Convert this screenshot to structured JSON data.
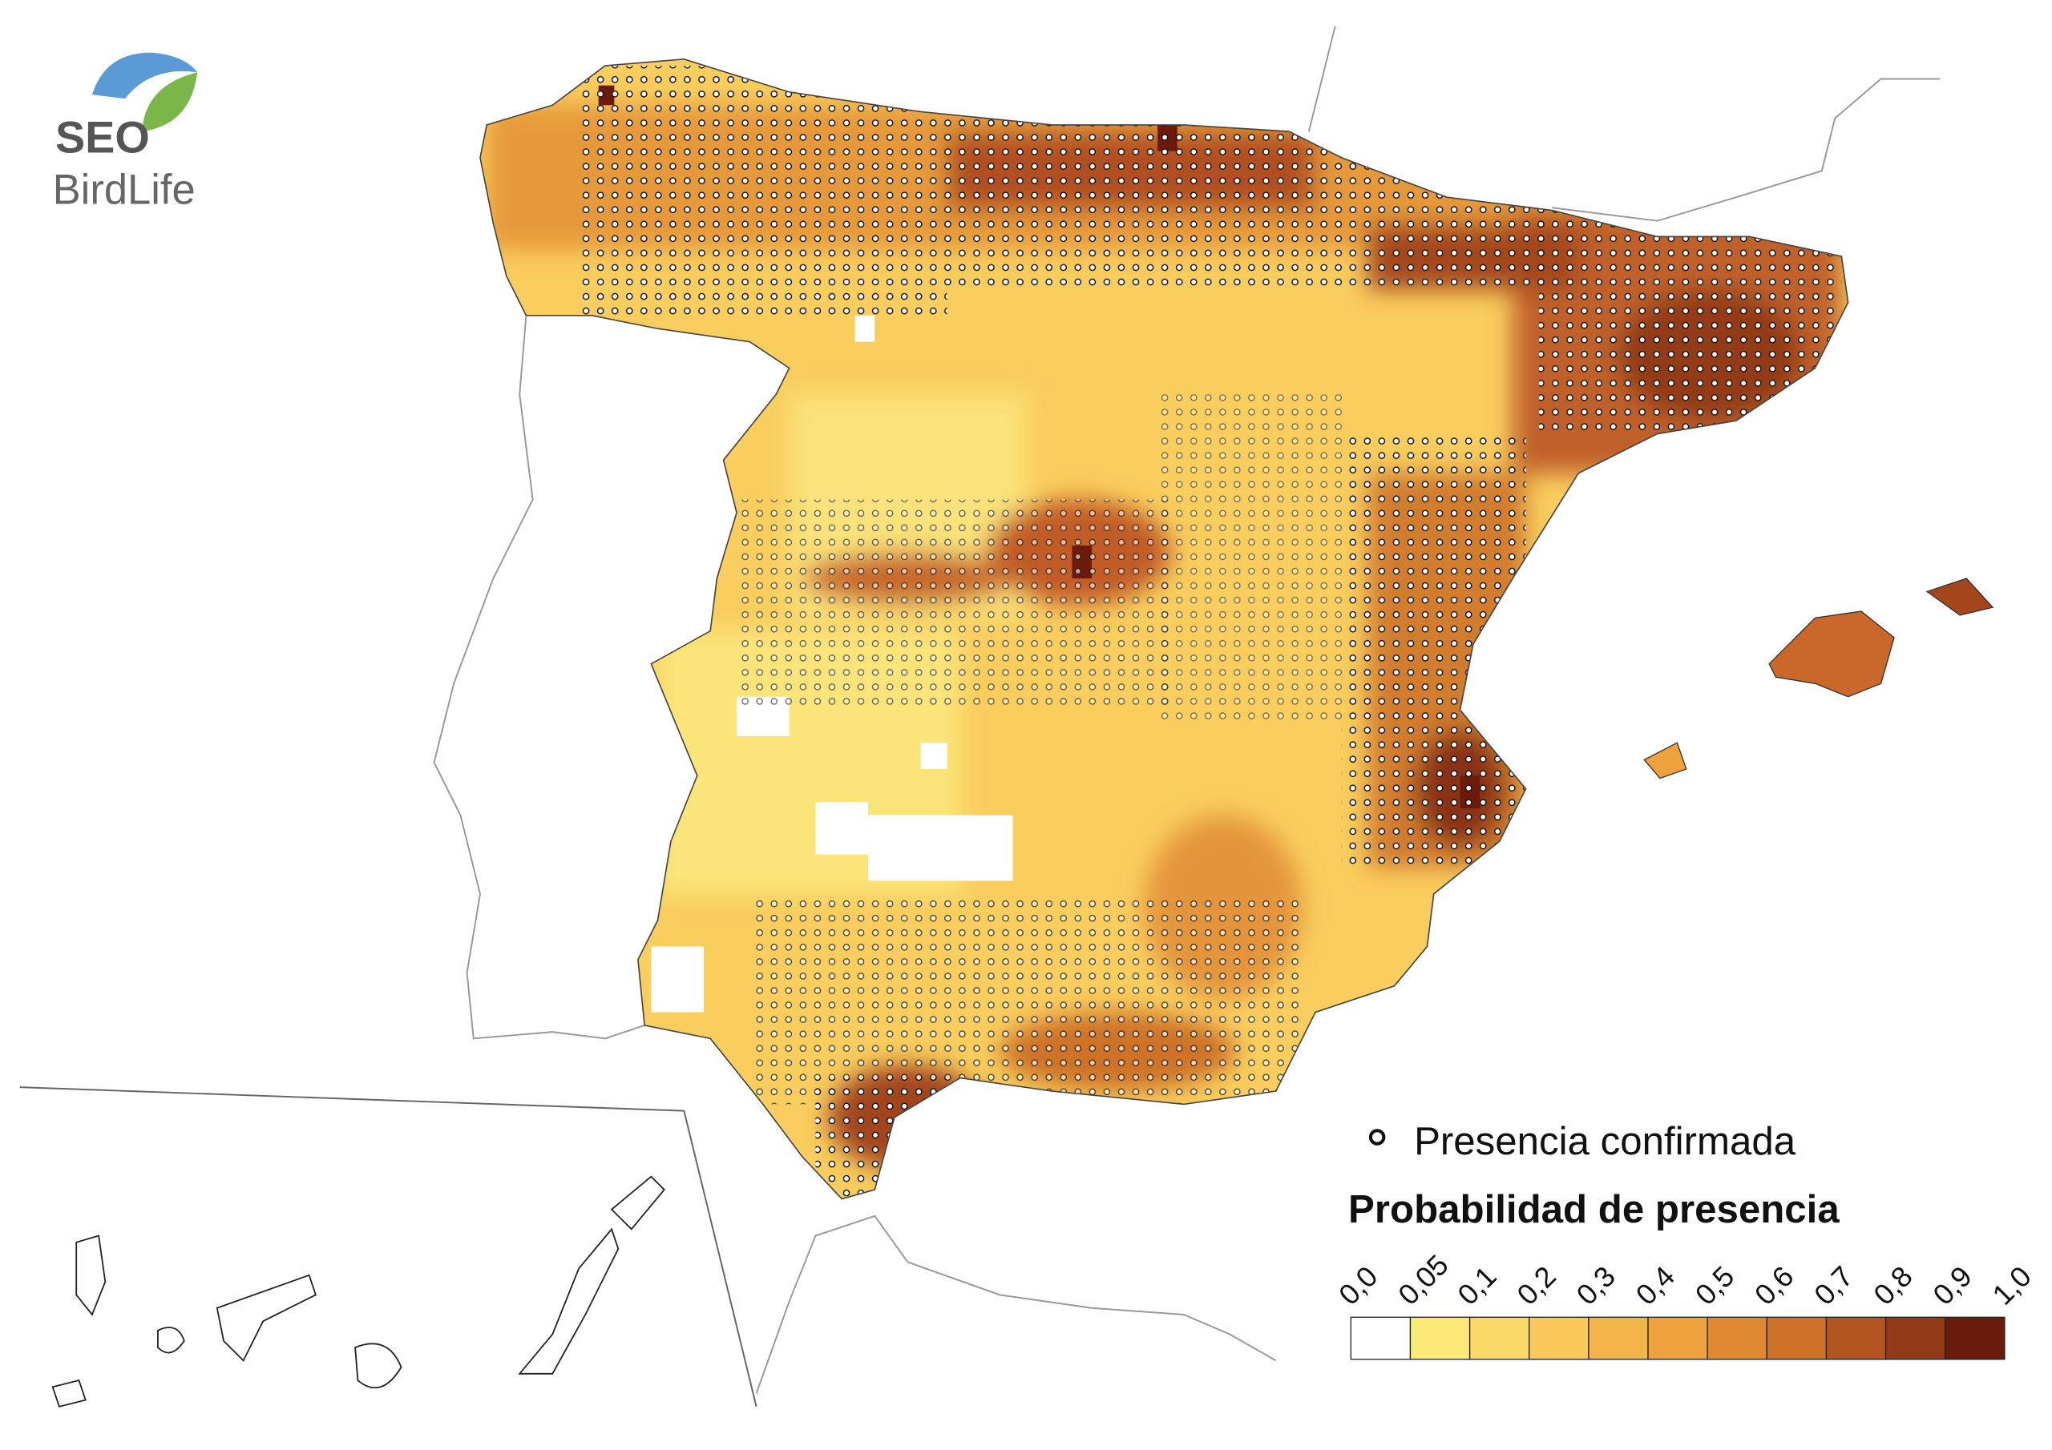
{
  "logo": {
    "line1": "SEO",
    "line2": "BirdLife"
  },
  "legend": {
    "presence_label": "Presencia confirmada",
    "title": "Probabilidad de presencia",
    "ticks": [
      "0,0",
      "0,05",
      "0,1",
      "0,2",
      "0,3",
      "0,4",
      "0,5",
      "0,6",
      "0,7",
      "0,8",
      "0,9",
      "1,0"
    ],
    "colors": [
      "#ffffff",
      "#fbea78",
      "#fad96a",
      "#f8c85a",
      "#f3b54b",
      "#eea23d",
      "#df8a30",
      "#cd7227",
      "#b2551e",
      "#923a18",
      "#6c1a0c"
    ]
  }
}
